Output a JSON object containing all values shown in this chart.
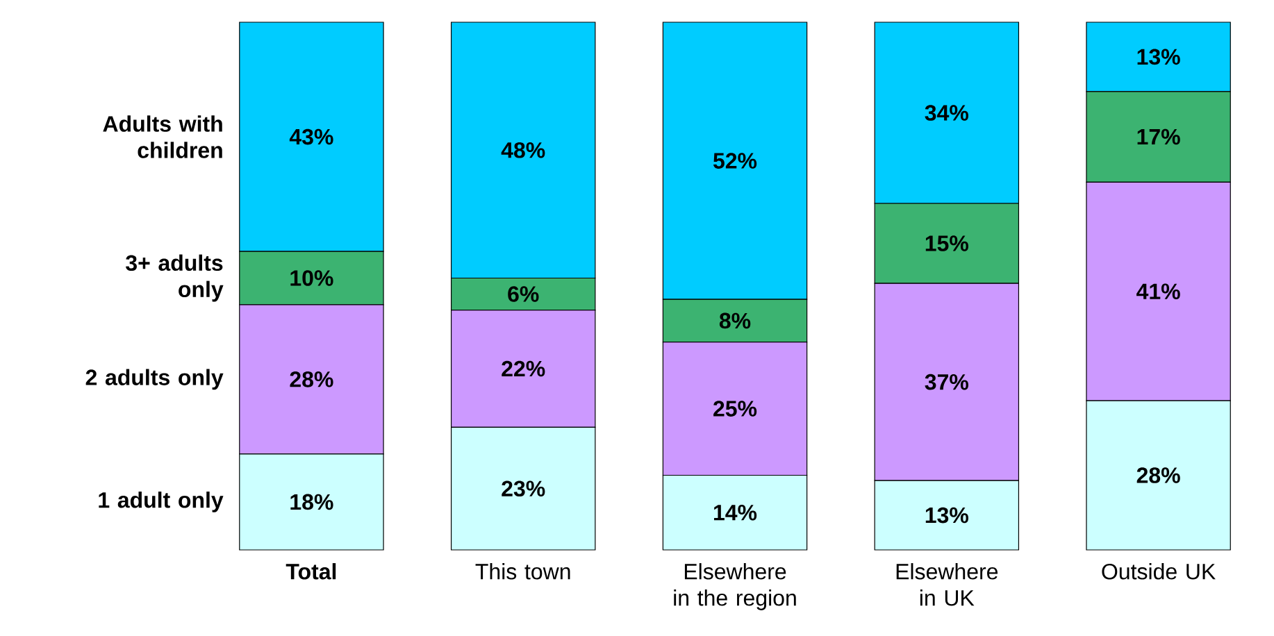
{
  "chart_data": {
    "type": "bar",
    "stacked": true,
    "categories": [
      "**Total**",
      "This town",
      "Elsewhere in the region",
      "Elsewhere in UK",
      "Outside UK"
    ],
    "series": [
      {
        "name": "1 adult only",
        "color": "#ccffff",
        "values": [
          18,
          23,
          14,
          13,
          28
        ],
        "value_labels": [
          "18%",
          "23%",
          "14%",
          "13%",
          "28%"
        ]
      },
      {
        "name": "2 adults only",
        "color": "#cc99ff",
        "values": [
          28,
          22,
          25,
          37,
          41
        ],
        "value_labels": [
          "28%",
          "22%",
          "25%",
          "37%",
          "41%"
        ]
      },
      {
        "name": "3+ adults only",
        "color": "#3cb371",
        "values": [
          10,
          6,
          8,
          15,
          17
        ],
        "value_labels": [
          "10%",
          "6%",
          "8%",
          "15%",
          "17%"
        ]
      },
      {
        "name": "Adults with children",
        "color": "#00ccff",
        "values": [
          43,
          48,
          52,
          34,
          13
        ],
        "value_labels": [
          "43%",
          "48%",
          "52%",
          "34%",
          "13%"
        ]
      }
    ]
  }
}
